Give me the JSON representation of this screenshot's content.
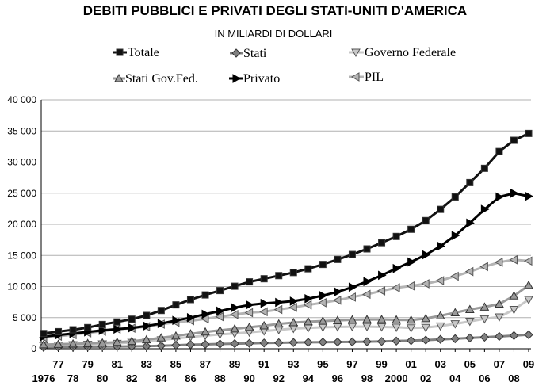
{
  "chart_data": {
    "type": "line",
    "title": "DEBITI PUBBLICI E PRIVATI DEGLI STATI-UNITI D'AMERICA",
    "subtitle": "IN MILIARDI DI DOLLARI",
    "xlabel": "",
    "ylabel": "",
    "ylim": [
      0,
      40000
    ],
    "y_ticks": [
      "0",
      "5 000",
      "10 000",
      "15 000",
      "20 000",
      "25 000",
      "30 000",
      "35 000",
      "40 000"
    ],
    "y_tick_values": [
      0,
      5000,
      10000,
      15000,
      20000,
      25000,
      30000,
      35000,
      40000
    ],
    "grid": true,
    "legend_position": "top",
    "x_tick_labels_top": [
      "77",
      "79",
      "81",
      "83",
      "85",
      "87",
      "89",
      "91",
      "93",
      "95",
      "97",
      "99",
      "01",
      "03",
      "05",
      "07",
      "09"
    ],
    "x_tick_labels_bottom": [
      "1976",
      "78",
      "80",
      "82",
      "84",
      "86",
      "88",
      "90",
      "92",
      "94",
      "96",
      "98",
      "2000",
      "02",
      "04",
      "06",
      "08"
    ],
    "x": [
      1976,
      1977,
      1978,
      1979,
      1980,
      1981,
      1982,
      1983,
      1984,
      1985,
      1986,
      1987,
      1988,
      1989,
      1990,
      1991,
      1992,
      1993,
      1994,
      1995,
      1996,
      1997,
      1998,
      1999,
      2000,
      2001,
      2002,
      2003,
      2004,
      2005,
      2006,
      2007,
      2008,
      2009
    ],
    "series": [
      {
        "name": "Totale",
        "color": "#111111",
        "marker": "square",
        "values": [
          2450,
          2750,
          3050,
          3400,
          3900,
          4300,
          4750,
          5350,
          6150,
          7050,
          7900,
          8650,
          9350,
          10050,
          10750,
          11250,
          11750,
          12250,
          12850,
          13550,
          14350,
          15150,
          16050,
          17050,
          18050,
          19200,
          20600,
          22400,
          24400,
          26700,
          29000,
          31700,
          33500,
          34600
        ]
      },
      {
        "name": "Stati",
        "color": "#808080",
        "marker": "diamond",
        "values": [
          250,
          280,
          300,
          320,
          340,
          360,
          380,
          420,
          480,
          560,
          650,
          700,
          760,
          820,
          870,
          920,
          960,
          1000,
          1030,
          1060,
          1080,
          1100,
          1130,
          1170,
          1230,
          1300,
          1390,
          1500,
          1610,
          1730,
          1850,
          1980,
          2120,
          2250
        ]
      },
      {
        "name": "Governo Federale",
        "color": "#c8c8c8",
        "marker": "triangle-down",
        "values": [
          500,
          560,
          620,
          680,
          760,
          850,
          1000,
          1200,
          1420,
          1650,
          1900,
          2100,
          2300,
          2450,
          2650,
          2850,
          3050,
          3250,
          3350,
          3450,
          3500,
          3550,
          3550,
          3500,
          3450,
          3350,
          3400,
          3650,
          4000,
          4400,
          4800,
          5100,
          6300,
          7900
        ]
      },
      {
        "name": "Stati  Gov.Fed.",
        "color": "#9a9a9a",
        "marker": "triangle-up",
        "values": [
          650,
          720,
          780,
          850,
          940,
          1050,
          1200,
          1450,
          1750,
          2050,
          2400,
          2700,
          2950,
          3200,
          3450,
          3700,
          4000,
          4200,
          4350,
          4450,
          4550,
          4650,
          4700,
          4700,
          4650,
          4600,
          4850,
          5300,
          5800,
          6300,
          6700,
          7200,
          8500,
          10200
        ]
      },
      {
        "name": "Privato",
        "color": "#000000",
        "marker": "arrow-right",
        "values": [
          1950,
          2200,
          2450,
          2700,
          2950,
          3150,
          3350,
          3650,
          4050,
          4550,
          5000,
          5550,
          6050,
          6600,
          7050,
          7300,
          7450,
          7650,
          8050,
          8550,
          9150,
          9900,
          10800,
          11800,
          12900,
          13950,
          15100,
          16500,
          18200,
          20200,
          22400,
          24400,
          25000,
          24500
        ]
      },
      {
        "name": "PIL",
        "color": "#b4b4b4",
        "marker": "triangle-left",
        "values": [
          1800,
          2000,
          2250,
          2550,
          2800,
          3150,
          3300,
          3550,
          3950,
          4250,
          4500,
          4800,
          5150,
          5500,
          5800,
          5950,
          6300,
          6650,
          7050,
          7400,
          7800,
          8300,
          8750,
          9300,
          9800,
          10100,
          10450,
          10950,
          11650,
          12400,
          13200,
          13900,
          14300,
          14100
        ]
      }
    ]
  }
}
